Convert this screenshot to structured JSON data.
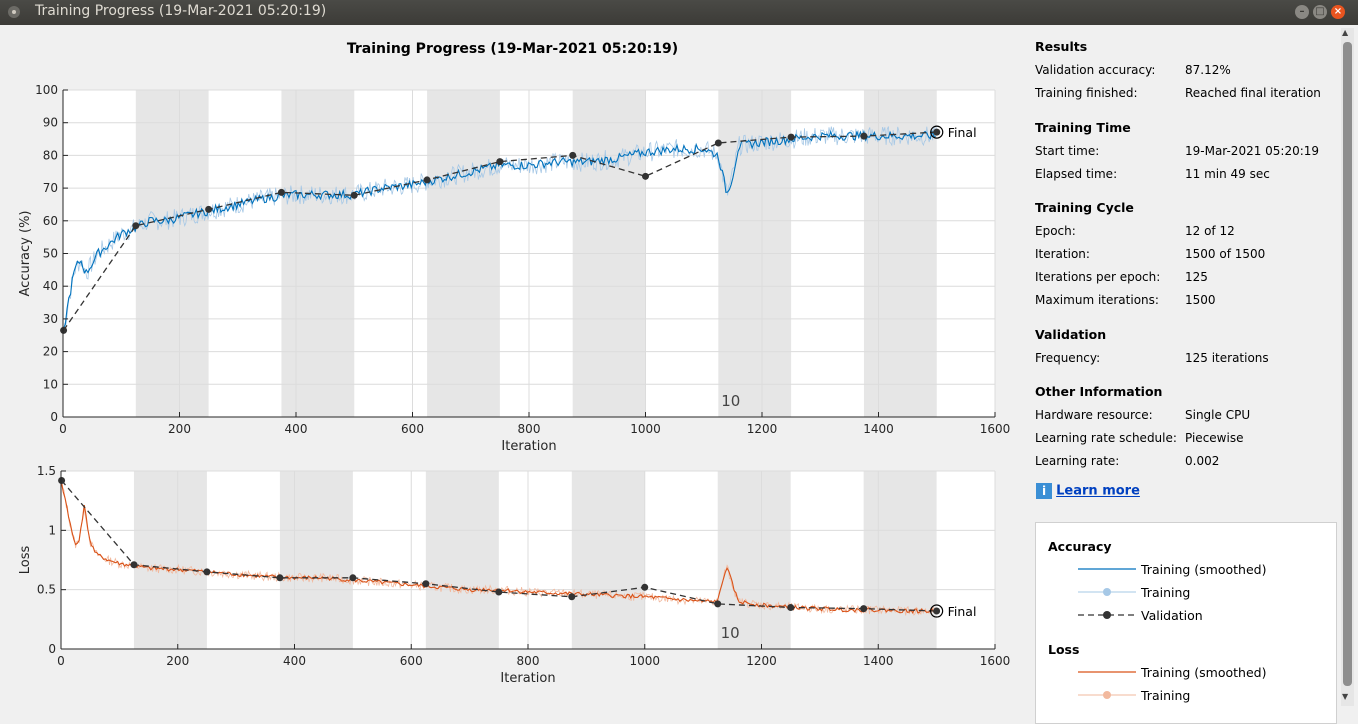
{
  "window": {
    "title": "Training Progress (19-Mar-2021 05:20:19)"
  },
  "plot_title": "Training Progress (19-Mar-2021 05:20:19)",
  "chart_data": [
    {
      "type": "line",
      "title": "",
      "xlabel": "Iteration",
      "ylabel": "Accuracy (%)",
      "xlim": [
        0,
        1600
      ],
      "ylim": [
        0,
        100
      ],
      "xticks": [
        0,
        200,
        400,
        600,
        800,
        1000,
        1200,
        1400,
        1600
      ],
      "yticks": [
        0,
        10,
        20,
        30,
        40,
        50,
        60,
        70,
        80,
        90,
        100
      ],
      "epoch_label": "10",
      "final_label": "Final",
      "epoch_length": 125,
      "series": [
        {
          "name": "Training (smoothed)",
          "color": "#0072bd",
          "x": [
            1,
            10,
            20,
            30,
            40,
            60,
            80,
            100,
            125,
            150,
            175,
            200,
            250,
            300,
            350,
            400,
            450,
            500,
            550,
            600,
            650,
            700,
            750,
            800,
            850,
            900,
            950,
            1000,
            1050,
            1100,
            1125,
            1140,
            1150,
            1160,
            1200,
            1250,
            1300,
            1350,
            1400,
            1450,
            1500
          ],
          "y": [
            26,
            36,
            45,
            48,
            44,
            50,
            53,
            56,
            58,
            60,
            60,
            61,
            63,
            65,
            67,
            68,
            68,
            68,
            70,
            71,
            73,
            75,
            77,
            77,
            78,
            78,
            79,
            81,
            82,
            82,
            80,
            68,
            74,
            83,
            84,
            85,
            86,
            86,
            86,
            86,
            86
          ]
        },
        {
          "name": "Validation",
          "color": "#333333",
          "x": [
            1,
            125,
            250,
            375,
            500,
            625,
            750,
            875,
            1000,
            1125,
            1250,
            1375,
            1500
          ],
          "y": [
            26.5,
            58.5,
            63.5,
            68.7,
            67.8,
            72.5,
            78.1,
            80.0,
            73.6,
            83.8,
            85.6,
            85.9,
            87.12
          ]
        }
      ]
    },
    {
      "type": "line",
      "title": "",
      "xlabel": "Iteration",
      "ylabel": "Loss",
      "xlim": [
        0,
        1600
      ],
      "ylim": [
        0,
        1.5
      ],
      "xticks": [
        0,
        200,
        400,
        600,
        800,
        1000,
        1200,
        1400,
        1600
      ],
      "yticks": [
        0,
        0.5,
        1,
        1.5
      ],
      "epoch_label": "10",
      "final_label": "Final",
      "epoch_length": 125,
      "series": [
        {
          "name": "Training (smoothed)",
          "color": "#d95319",
          "x": [
            1,
            10,
            20,
            25,
            30,
            40,
            50,
            60,
            80,
            100,
            125,
            150,
            200,
            250,
            300,
            350,
            400,
            450,
            500,
            550,
            600,
            650,
            700,
            750,
            800,
            850,
            900,
            950,
            1000,
            1050,
            1100,
            1125,
            1140,
            1150,
            1160,
            1200,
            1250,
            1300,
            1350,
            1400,
            1450,
            1500
          ],
          "y": [
            1.4,
            1.2,
            0.95,
            0.88,
            0.9,
            1.2,
            0.9,
            0.8,
            0.75,
            0.72,
            0.7,
            0.68,
            0.67,
            0.65,
            0.63,
            0.61,
            0.6,
            0.6,
            0.58,
            0.56,
            0.54,
            0.52,
            0.5,
            0.5,
            0.48,
            0.47,
            0.46,
            0.45,
            0.44,
            0.42,
            0.4,
            0.4,
            0.7,
            0.55,
            0.4,
            0.37,
            0.35,
            0.34,
            0.33,
            0.33,
            0.32,
            0.32
          ]
        },
        {
          "name": "Validation",
          "color": "#333333",
          "x": [
            1,
            125,
            250,
            375,
            500,
            625,
            750,
            875,
            1000,
            1125,
            1250,
            1375,
            1500
          ],
          "y": [
            1.42,
            0.71,
            0.65,
            0.6,
            0.6,
            0.55,
            0.48,
            0.44,
            0.52,
            0.38,
            0.35,
            0.34,
            0.32
          ]
        }
      ]
    }
  ],
  "results": {
    "heading": "Results",
    "rows": [
      {
        "label": "Validation accuracy:",
        "value": "87.12%"
      },
      {
        "label": "Training finished:",
        "value": "Reached final iteration"
      }
    ]
  },
  "training_time": {
    "heading": "Training Time",
    "rows": [
      {
        "label": "Start time:",
        "value": "19-Mar-2021 05:20:19"
      },
      {
        "label": "Elapsed time:",
        "value": "11 min 49 sec"
      }
    ]
  },
  "training_cycle": {
    "heading": "Training Cycle",
    "rows": [
      {
        "label": "Epoch:",
        "value": "12 of 12"
      },
      {
        "label": "Iteration:",
        "value": "1500 of 1500"
      },
      {
        "label": "Iterations per epoch:",
        "value": "125"
      },
      {
        "label": "Maximum iterations:",
        "value": "1500"
      }
    ]
  },
  "validation": {
    "heading": "Validation",
    "rows": [
      {
        "label": "Frequency:",
        "value": "125 iterations"
      }
    ]
  },
  "other": {
    "heading": "Other Information",
    "rows": [
      {
        "label": "Hardware resource:",
        "value": "Single CPU"
      },
      {
        "label": "Learning rate schedule:",
        "value": "Piecewise"
      },
      {
        "label": "Learning rate:",
        "value": "0.002"
      }
    ]
  },
  "learn_more": {
    "label": "Learn more",
    "icon": "info-icon"
  },
  "legend": {
    "accuracy": {
      "heading": "Accuracy",
      "smoothed": "Training (smoothed)",
      "training": "Training",
      "validation": "Validation"
    },
    "loss": {
      "heading": "Loss",
      "smoothed": "Training (smoothed)",
      "training": "Training"
    }
  },
  "colors": {
    "accuracy": "#0072bd",
    "accuracy_light": "#a6c8e6",
    "loss": "#d95319",
    "loss_light": "#f2b99e",
    "validation": "#333333",
    "epoch_band": "#e6e6e6"
  }
}
